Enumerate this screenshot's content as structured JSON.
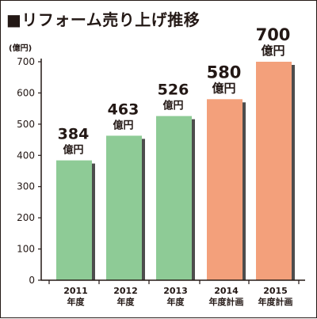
{
  "title": "■リフォーム売り上げ推移",
  "unit_label": "(億円)",
  "colors": {
    "actual": "#8ecb96",
    "plan": "#f3a07b",
    "shadow": "#4d4d4d",
    "axis": "#231815"
  },
  "chart_data": {
    "type": "bar",
    "title": "■リフォーム売り上げ推移",
    "ylabel": "(億円)",
    "xlabel": "",
    "ylim": [
      0,
      700
    ],
    "yticks": [
      0,
      100,
      200,
      300,
      400,
      500,
      600,
      700
    ],
    "grid": false,
    "categories": [
      {
        "year": "2011",
        "sub": "年度"
      },
      {
        "year": "2012",
        "sub": "年度"
      },
      {
        "year": "2013",
        "sub": "年度"
      },
      {
        "year": "2014",
        "sub": "年度計画"
      },
      {
        "year": "2015",
        "sub": "年度計画"
      }
    ],
    "values": [
      384,
      463,
      526,
      580,
      700
    ],
    "value_unit": "億円",
    "bar_kind": [
      "actual",
      "actual",
      "actual",
      "plan",
      "plan"
    ]
  }
}
